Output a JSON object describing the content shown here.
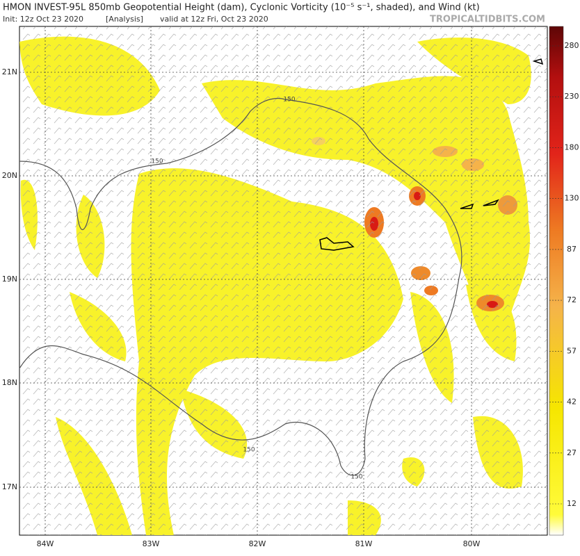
{
  "header": {
    "title": "HMON INVEST-95L 850mb Geopotential Height (dam), Cyclonic Vorticity (10⁻⁵ s⁻¹, shaded), and Wind (kt)",
    "init": "Init: 12z Oct 23 2020",
    "analysis": "[Analysis]",
    "valid": "valid at 12z Fri, Oct 23 2020",
    "watermark": "TROPICALTIDBITS.COM"
  },
  "map": {
    "lon_labels": [
      "84W",
      "83W",
      "82W",
      "81W",
      "80W"
    ],
    "lat_labels": [
      "21N",
      "20N",
      "19N",
      "18N",
      "17N"
    ],
    "contour_labels": [
      "150",
      "150",
      "150",
      "150"
    ]
  },
  "colorbar": {
    "labels": [
      "280",
      "230",
      "180",
      "130",
      "87",
      "72",
      "57",
      "42",
      "27",
      "12"
    ]
  }
}
